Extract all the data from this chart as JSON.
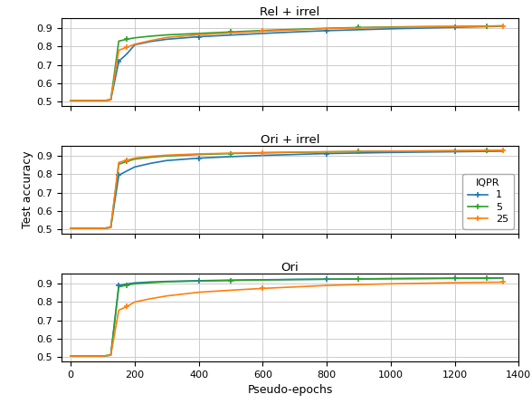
{
  "subplot_titles": [
    "Rel + irrel",
    "Ori + irrel",
    "Ori"
  ],
  "xlabel": "Pseudo-epochs",
  "ylabel": "Test accuracy",
  "legend_title": "IQPR",
  "legend_labels": [
    "1",
    "5",
    "25"
  ],
  "colors": [
    "#1f77b4",
    "#2ca02c",
    "#ff7f0e"
  ],
  "xlim": [
    -30,
    1400
  ],
  "ylim": [
    0.475,
    0.955
  ],
  "yticks": [
    0.5,
    0.6,
    0.7,
    0.8,
    0.9
  ],
  "xticks": [
    0,
    200,
    400,
    600,
    800,
    1000,
    1200,
    1400
  ],
  "series": {
    "Rel + irrel": {
      "iqpr1": {
        "x": [
          0,
          25,
          50,
          75,
          100,
          125,
          150,
          175,
          200,
          250,
          300,
          400,
          500,
          600,
          700,
          800,
          900,
          1000,
          1100,
          1200,
          1300,
          1350
        ],
        "y": [
          0.505,
          0.505,
          0.505,
          0.505,
          0.505,
          0.51,
          0.72,
          0.76,
          0.81,
          0.828,
          0.84,
          0.854,
          0.863,
          0.872,
          0.88,
          0.887,
          0.892,
          0.897,
          0.901,
          0.905,
          0.909,
          0.911
        ]
      },
      "iqpr5": {
        "x": [
          0,
          25,
          50,
          75,
          100,
          125,
          150,
          175,
          200,
          250,
          300,
          400,
          500,
          600,
          700,
          800,
          900,
          1000,
          1100,
          1200,
          1300,
          1350
        ],
        "y": [
          0.505,
          0.505,
          0.505,
          0.505,
          0.505,
          0.51,
          0.83,
          0.84,
          0.848,
          0.857,
          0.864,
          0.872,
          0.88,
          0.888,
          0.894,
          0.9,
          0.904,
          0.907,
          0.909,
          0.91,
          0.912,
          0.913
        ]
      },
      "iqpr25": {
        "x": [
          0,
          25,
          50,
          75,
          100,
          125,
          150,
          175,
          200,
          250,
          300,
          400,
          500,
          600,
          700,
          800,
          900,
          1000,
          1100,
          1200,
          1300,
          1350
        ],
        "y": [
          0.505,
          0.505,
          0.505,
          0.505,
          0.505,
          0.51,
          0.78,
          0.797,
          0.813,
          0.833,
          0.85,
          0.865,
          0.875,
          0.884,
          0.891,
          0.898,
          0.902,
          0.905,
          0.907,
          0.909,
          0.911,
          0.913
        ]
      }
    },
    "Ori + irrel": {
      "iqpr1": {
        "x": [
          0,
          25,
          50,
          75,
          100,
          125,
          150,
          175,
          200,
          250,
          300,
          400,
          500,
          600,
          700,
          800,
          900,
          1000,
          1100,
          1200,
          1300,
          1350
        ],
        "y": [
          0.505,
          0.505,
          0.505,
          0.505,
          0.505,
          0.51,
          0.795,
          0.818,
          0.84,
          0.86,
          0.875,
          0.888,
          0.896,
          0.903,
          0.908,
          0.913,
          0.916,
          0.919,
          0.921,
          0.923,
          0.925,
          0.926
        ]
      },
      "iqpr5": {
        "x": [
          0,
          25,
          50,
          75,
          100,
          125,
          150,
          175,
          200,
          250,
          300,
          400,
          500,
          600,
          700,
          800,
          900,
          1000,
          1100,
          1200,
          1300,
          1350
        ],
        "y": [
          0.505,
          0.505,
          0.505,
          0.505,
          0.505,
          0.51,
          0.855,
          0.87,
          0.883,
          0.893,
          0.9,
          0.908,
          0.913,
          0.917,
          0.92,
          0.922,
          0.924,
          0.926,
          0.927,
          0.928,
          0.929,
          0.93
        ]
      },
      "iqpr25": {
        "x": [
          0,
          25,
          50,
          75,
          100,
          125,
          150,
          175,
          200,
          250,
          300,
          400,
          500,
          600,
          700,
          800,
          900,
          1000,
          1100,
          1200,
          1300,
          1350
        ],
        "y": [
          0.505,
          0.505,
          0.505,
          0.505,
          0.505,
          0.51,
          0.865,
          0.877,
          0.888,
          0.898,
          0.904,
          0.911,
          0.915,
          0.918,
          0.921,
          0.923,
          0.925,
          0.926,
          0.927,
          0.928,
          0.929,
          0.93
        ]
      }
    },
    "Ori": {
      "iqpr1": {
        "x": [
          0,
          25,
          50,
          75,
          100,
          125,
          150,
          175,
          200,
          250,
          300,
          400,
          500,
          600,
          700,
          800,
          900,
          1000,
          1100,
          1200,
          1300,
          1350
        ],
        "y": [
          0.505,
          0.505,
          0.505,
          0.505,
          0.505,
          0.51,
          0.89,
          0.898,
          0.904,
          0.909,
          0.912,
          0.916,
          0.919,
          0.921,
          0.923,
          0.924,
          0.926,
          0.927,
          0.928,
          0.929,
          0.93,
          0.931
        ]
      },
      "iqpr5": {
        "x": [
          0,
          25,
          50,
          75,
          100,
          125,
          150,
          175,
          200,
          250,
          300,
          400,
          500,
          600,
          700,
          800,
          900,
          1000,
          1100,
          1200,
          1300,
          1350
        ],
        "y": [
          0.505,
          0.505,
          0.505,
          0.505,
          0.505,
          0.51,
          0.882,
          0.892,
          0.899,
          0.905,
          0.91,
          0.914,
          0.917,
          0.92,
          0.922,
          0.924,
          0.925,
          0.927,
          0.928,
          0.929,
          0.93,
          0.931
        ]
      },
      "iqpr25": {
        "x": [
          0,
          25,
          50,
          75,
          100,
          125,
          150,
          175,
          200,
          250,
          300,
          400,
          500,
          600,
          700,
          800,
          900,
          1000,
          1100,
          1200,
          1300,
          1350
        ],
        "y": [
          0.505,
          0.505,
          0.505,
          0.505,
          0.505,
          0.51,
          0.755,
          0.775,
          0.8,
          0.818,
          0.833,
          0.853,
          0.864,
          0.874,
          0.882,
          0.89,
          0.895,
          0.899,
          0.902,
          0.905,
          0.907,
          0.908
        ]
      }
    }
  },
  "marker_x": {
    "iqpr1": [
      150,
      400,
      800,
      1200
    ],
    "iqpr5": [
      175,
      500,
      900,
      1300
    ],
    "iqpr25": [
      175,
      600,
      950,
      1350
    ]
  }
}
